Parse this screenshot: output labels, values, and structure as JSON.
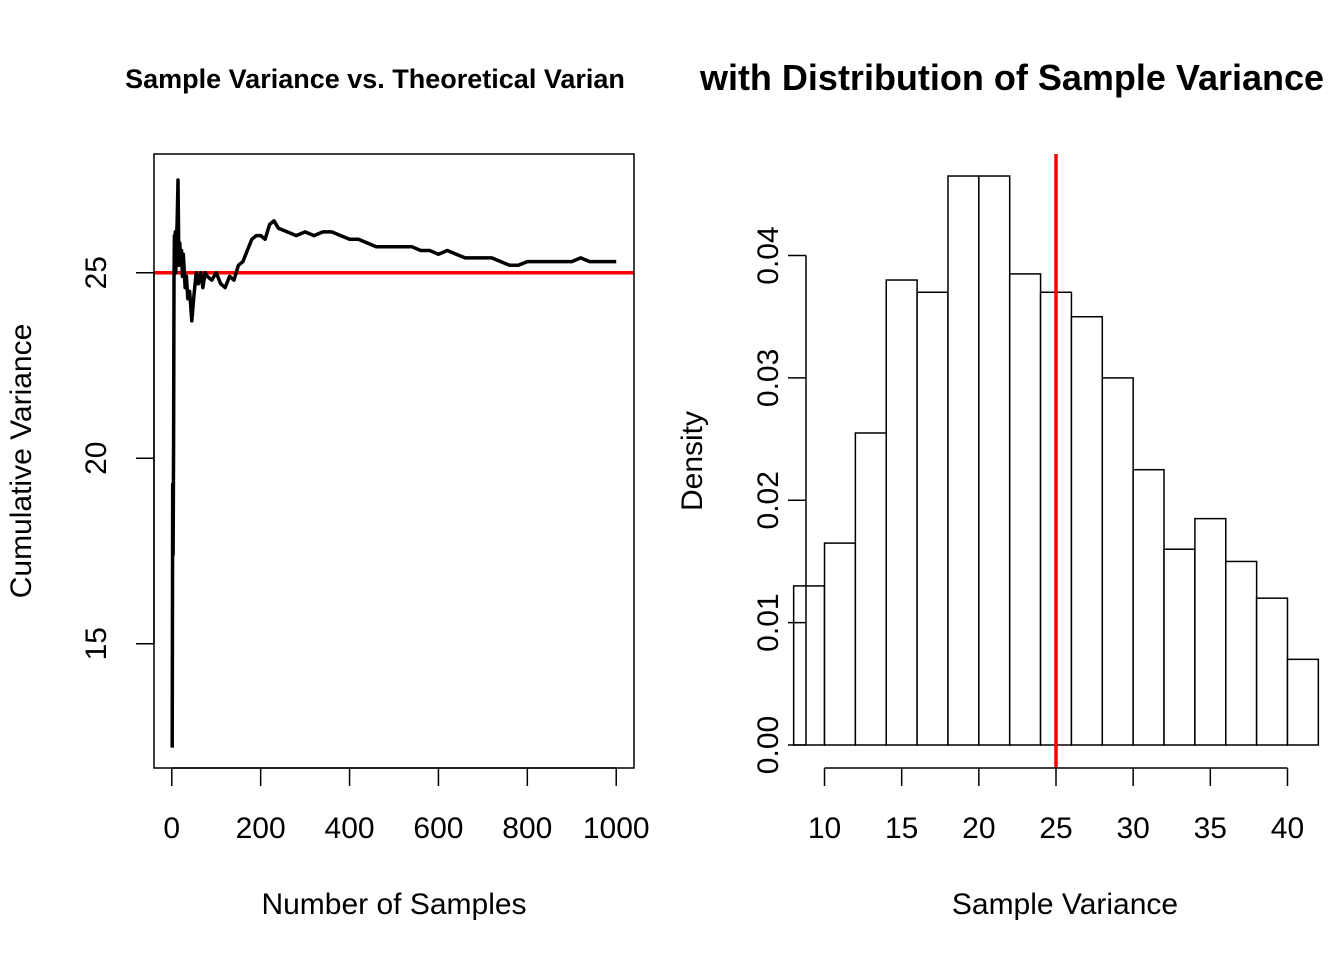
{
  "chart_data": [
    {
      "type": "line",
      "title": "Sample Variance vs. Theoretical Varian",
      "xlabel": "Number of Samples",
      "ylabel": "Cumulative Variance",
      "xlim": [
        -40,
        1040
      ],
      "ylim": [
        11.65,
        28.2
      ],
      "x_ticks": [
        0,
        200,
        400,
        600,
        800,
        1000
      ],
      "y_ticks": [
        15,
        20,
        25
      ],
      "reference_line": {
        "y": 25,
        "color": "#ff0000"
      },
      "series": [
        {
          "color": "#000000",
          "x": [
            1,
            2,
            3,
            4,
            5,
            6,
            7,
            8,
            9,
            10,
            12,
            14,
            16,
            18,
            20,
            22,
            24,
            26,
            28,
            30,
            33,
            36,
            40,
            45,
            50,
            55,
            60,
            65,
            70,
            75,
            80,
            90,
            100,
            110,
            120,
            130,
            140,
            150,
            160,
            170,
            180,
            190,
            200,
            210,
            220,
            230,
            240,
            260,
            280,
            300,
            320,
            340,
            360,
            380,
            400,
            420,
            440,
            460,
            480,
            500,
            520,
            540,
            560,
            580,
            600,
            620,
            640,
            660,
            680,
            700,
            720,
            740,
            760,
            780,
            800,
            820,
            840,
            860,
            880,
            900,
            920,
            940,
            960,
            980,
            1000
          ],
          "y": [
            12.2,
            19.3,
            17.4,
            20.5,
            24.8,
            26.0,
            25.5,
            26.1,
            25.0,
            25.8,
            26.3,
            27.5,
            25.2,
            25.8,
            25.3,
            25.6,
            24.9,
            25.5,
            25.1,
            24.6,
            24.9,
            24.3,
            24.5,
            23.7,
            24.4,
            25.0,
            24.7,
            25.0,
            24.6,
            25.0,
            24.9,
            24.8,
            25.0,
            24.7,
            24.6,
            24.9,
            24.8,
            25.2,
            25.3,
            25.6,
            25.9,
            26.0,
            26.0,
            25.9,
            26.3,
            26.4,
            26.2,
            26.1,
            26.0,
            26.1,
            26.0,
            26.1,
            26.1,
            26.0,
            25.9,
            25.9,
            25.8,
            25.7,
            25.7,
            25.7,
            25.7,
            25.7,
            25.6,
            25.6,
            25.5,
            25.6,
            25.5,
            25.4,
            25.4,
            25.4,
            25.4,
            25.3,
            25.2,
            25.2,
            25.3,
            25.3,
            25.3,
            25.3,
            25.3,
            25.3,
            25.4,
            25.3,
            25.3,
            25.3,
            25.3
          ]
        }
      ]
    },
    {
      "type": "bar",
      "title": "with Distribution of Sample Variance",
      "xlabel": "Sample Variance",
      "ylabel": "Density",
      "xlim": [
        8.8,
        41.2
      ],
      "ylim": [
        0,
        0.0483
      ],
      "x_ticks": [
        10,
        15,
        20,
        25,
        30,
        35,
        40
      ],
      "y_ticks": [
        "0.00",
        "0.01",
        "0.02",
        "0.03",
        "0.04"
      ],
      "reference_line": {
        "x": 25,
        "color": "#ff0000"
      },
      "bins": [
        {
          "x0": 8,
          "x1": 10,
          "value": 0.013
        },
        {
          "x0": 10,
          "x1": 12,
          "value": 0.0165
        },
        {
          "x0": 12,
          "x1": 14,
          "value": 0.0255
        },
        {
          "x0": 14,
          "x1": 16,
          "value": 0.038
        },
        {
          "x0": 16,
          "x1": 18,
          "value": 0.037
        },
        {
          "x0": 18,
          "x1": 20,
          "value": 0.0465
        },
        {
          "x0": 20,
          "x1": 22,
          "value": 0.0465
        },
        {
          "x0": 22,
          "x1": 24,
          "value": 0.0385
        },
        {
          "x0": 24,
          "x1": 26,
          "value": 0.037
        },
        {
          "x0": 26,
          "x1": 28,
          "value": 0.035
        },
        {
          "x0": 28,
          "x1": 30,
          "value": 0.03
        },
        {
          "x0": 30,
          "x1": 32,
          "value": 0.0225
        },
        {
          "x0": 32,
          "x1": 34,
          "value": 0.016
        },
        {
          "x0": 34,
          "x1": 36,
          "value": 0.0185
        },
        {
          "x0": 36,
          "x1": 38,
          "value": 0.015
        },
        {
          "x0": 38,
          "x1": 40,
          "value": 0.012
        },
        {
          "x0": 40,
          "x1": 42,
          "value": 0.007
        }
      ]
    }
  ]
}
